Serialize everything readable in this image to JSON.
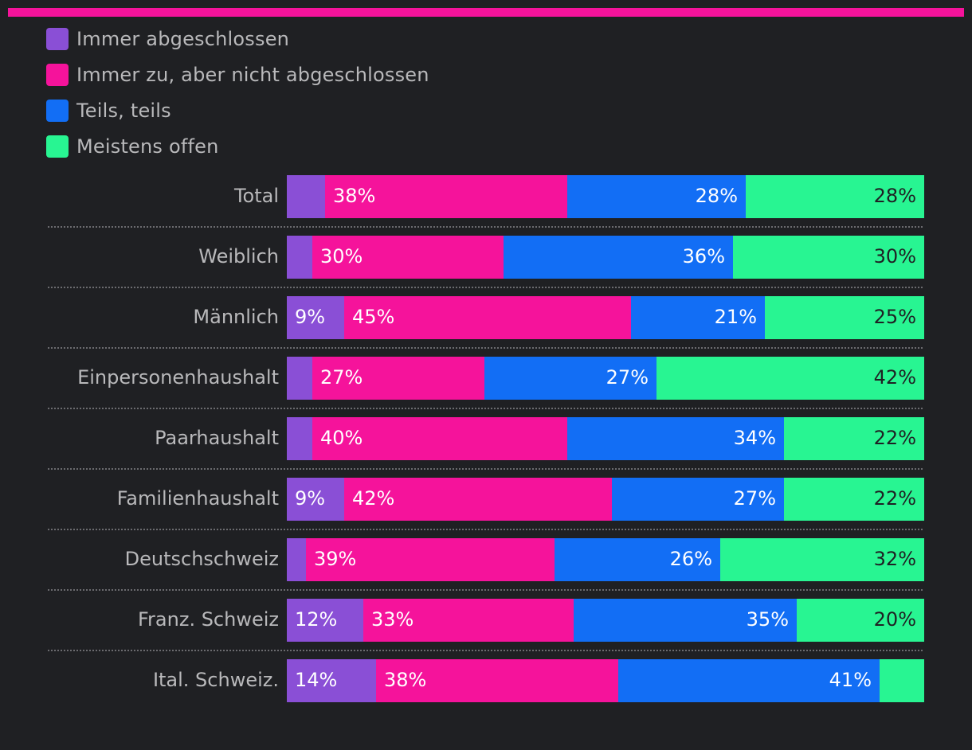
{
  "chart_data": {
    "type": "bar",
    "orientation": "horizontal",
    "stacked": true,
    "percent": true,
    "categories": [
      "Total",
      "Weiblich",
      "Männlich",
      "Einpersonenhaushalt",
      "Paarhaushalt",
      "Familienhaushalt",
      "Deutschschweiz",
      "Franz. Schweiz",
      "Ital. Schweiz."
    ],
    "series": [
      {
        "name": "Immer abgeschlossen",
        "color": "#8a4fd6",
        "values": [
          6,
          4,
          9,
          4,
          4,
          9,
          3,
          12,
          14
        ],
        "labels": [
          "",
          "",
          "9%",
          "",
          "",
          "9%",
          "",
          "12%",
          "14%"
        ]
      },
      {
        "name": "Immer zu, aber nicht abgeschlossen",
        "color": "#f5139b",
        "values": [
          38,
          30,
          45,
          27,
          40,
          42,
          39,
          33,
          38
        ],
        "labels": [
          "38%",
          "30%",
          "45%",
          "27%",
          "40%",
          "42%",
          "39%",
          "33%",
          "38%"
        ]
      },
      {
        "name": "Teils, teils",
        "color": "#126ef5",
        "values": [
          28,
          36,
          21,
          27,
          34,
          27,
          26,
          35,
          41
        ],
        "labels": [
          "28%",
          "36%",
          "21%",
          "27%",
          "34%",
          "27%",
          "26%",
          "35%",
          "41%"
        ]
      },
      {
        "name": "Meistens offen",
        "color": "#28f592",
        "values": [
          28,
          30,
          25,
          42,
          22,
          22,
          32,
          20,
          7
        ],
        "labels": [
          "28%",
          "30%",
          "25%",
          "42%",
          "22%",
          "22%",
          "32%",
          "20%",
          ""
        ]
      }
    ],
    "xlim": [
      0,
      100
    ],
    "grid": false,
    "legend_position": "top-left"
  }
}
